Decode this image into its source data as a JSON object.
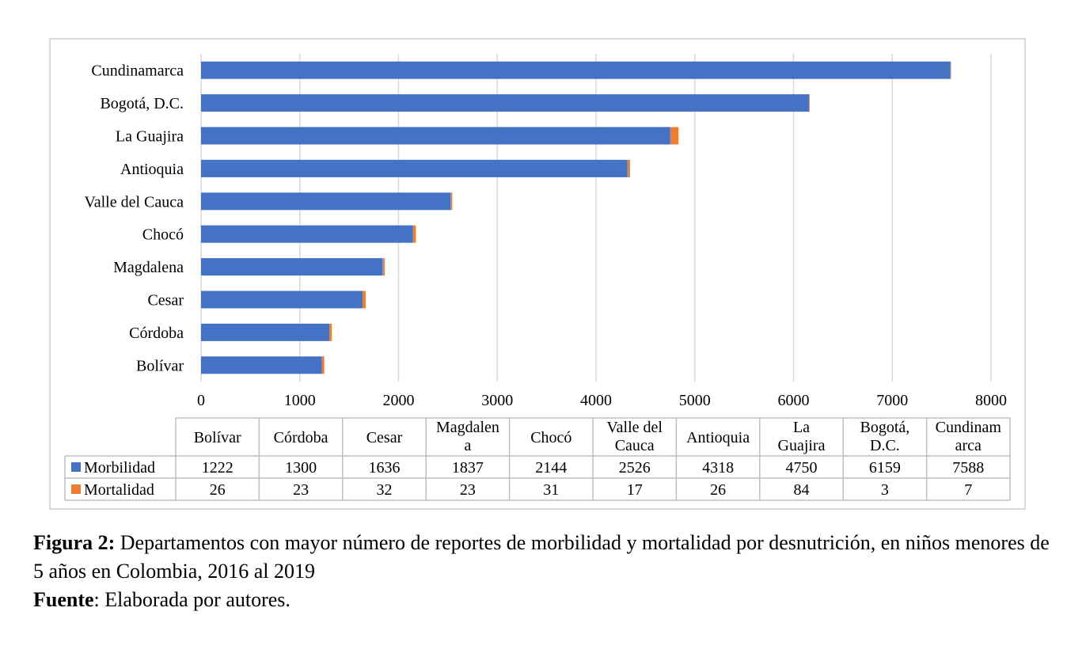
{
  "chart_data": {
    "type": "bar",
    "orientation": "horizontal",
    "stacked": true,
    "categories": [
      "Bolívar",
      "Córdoba",
      "Cesar",
      "Magdalena",
      "Chocó",
      "Valle del Cauca",
      "Antioquia",
      "La Guajira",
      "Bogotá, D.C.",
      "Cundinamarca"
    ],
    "table_headers": [
      [
        "Bolívar"
      ],
      [
        "Córdoba"
      ],
      [
        "Cesar"
      ],
      [
        "Magdalen",
        "a"
      ],
      [
        "Chocó"
      ],
      [
        "Valle del",
        "Cauca"
      ],
      [
        "Antioquia"
      ],
      [
        "La",
        "Guajira"
      ],
      [
        "Bogotá,",
        "D.C."
      ],
      [
        "Cundinam",
        "arca"
      ]
    ],
    "series": [
      {
        "name": "Morbilidad",
        "color": "#4472c4",
        "values": [
          1222,
          1300,
          1636,
          1837,
          2144,
          2526,
          4318,
          4750,
          6159,
          7588
        ]
      },
      {
        "name": "Mortalidad",
        "color": "#ed7d31",
        "values": [
          26,
          23,
          32,
          23,
          31,
          17,
          26,
          84,
          3,
          7
        ]
      }
    ],
    "xlim": [
      0,
      8000
    ],
    "x_ticks": [
      0,
      1000,
      2000,
      3000,
      4000,
      5000,
      6000,
      7000,
      8000
    ],
    "grid": true,
    "legend": "data-table"
  },
  "caption": {
    "figure_label": "Figura 2:",
    "figure_text": " Departamentos con mayor número de reportes de morbilidad y mortalidad por desnutrición, en niños menores de 5 años en Colombia, 2016 al 2019",
    "source_label": "Fuente",
    "source_text": ": Elaborada por autores."
  }
}
